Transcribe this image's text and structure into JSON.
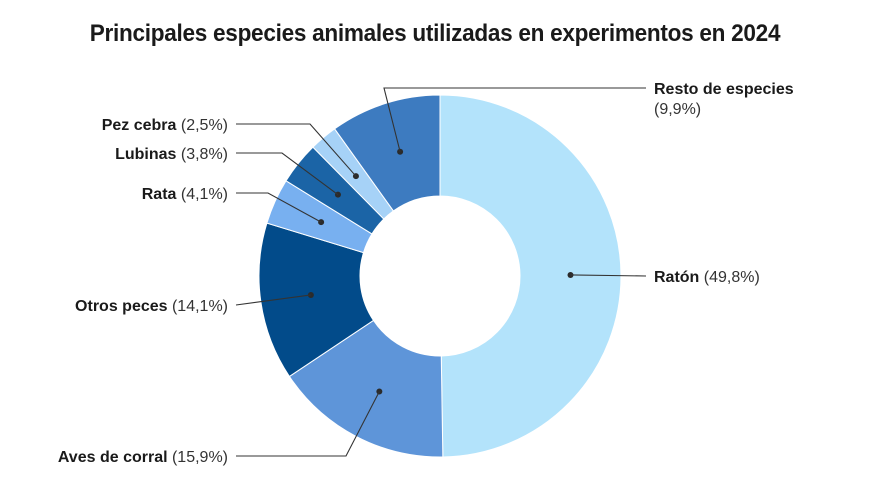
{
  "chart_data": {
    "type": "pie",
    "variant": "donut",
    "title": "Principales especies animales utilizadas en experimentos en 2024",
    "start": "top",
    "direction": "clockwise",
    "slices": [
      {
        "name": "Ratón",
        "value": 49.8,
        "pct_label": "(49,8%)",
        "color": "#b3e3fb",
        "label_side": "right"
      },
      {
        "name": "Aves de corral",
        "value": 15.9,
        "pct_label": "(15,9%)",
        "color": "#5e95d9",
        "label_side": "left"
      },
      {
        "name": "Otros peces",
        "value": 14.1,
        "pct_label": "(14,1%)",
        "color": "#024b8a",
        "label_side": "left"
      },
      {
        "name": "Rata",
        "value": 4.1,
        "pct_label": "(4,1%)",
        "color": "#78b0f0",
        "label_side": "left"
      },
      {
        "name": "Lubinas",
        "value": 3.8,
        "pct_label": "(3,8%)",
        "color": "#1b64a6",
        "label_side": "left"
      },
      {
        "name": "Pez cebra",
        "value": 2.5,
        "pct_label": "(2,5%)",
        "color": "#a6d2f7",
        "label_side": "left"
      },
      {
        "name": "Resto de especies",
        "value": 9.9,
        "pct_label": "(9,9%)",
        "color": "#3d7bc0",
        "label_side": "right"
      }
    ]
  }
}
